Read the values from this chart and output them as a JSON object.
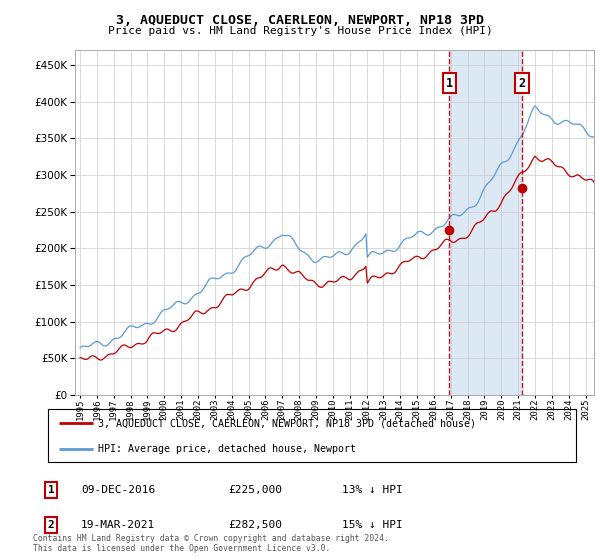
{
  "title": "3, AQUEDUCT CLOSE, CAERLEON, NEWPORT, NP18 3PD",
  "subtitle": "Price paid vs. HM Land Registry's House Price Index (HPI)",
  "yticks": [
    0,
    50000,
    100000,
    150000,
    200000,
    250000,
    300000,
    350000,
    400000,
    450000
  ],
  "ylim": [
    0,
    470000
  ],
  "xlim_start": 1994.7,
  "xlim_end": 2025.5,
  "background_color": "white",
  "plot_bg_color": "white",
  "grid_color": "#cccccc",
  "hpi_color": "#5b9bd5",
  "price_color": "#c00000",
  "dashed_line_color": "#c00000",
  "shade_color": "#dce9f5",
  "sale1_x": 2016.92,
  "sale1_y": 225000,
  "sale1_label": "1",
  "sale1_date": "09-DEC-2016",
  "sale1_price": "£225,000",
  "sale1_note": "13% ↓ HPI",
  "sale2_x": 2021.21,
  "sale2_y": 282500,
  "sale2_label": "2",
  "sale2_date": "19-MAR-2021",
  "sale2_price": "£282,500",
  "sale2_note": "15% ↓ HPI",
  "legend_line1": "3, AQUEDUCT CLOSE, CAERLEON, NEWPORT, NP18 3PD (detached house)",
  "legend_line2": "HPI: Average price, detached house, Newport",
  "footer": "Contains HM Land Registry data © Crown copyright and database right 2024.\nThis data is licensed under the Open Government Licence v3.0."
}
